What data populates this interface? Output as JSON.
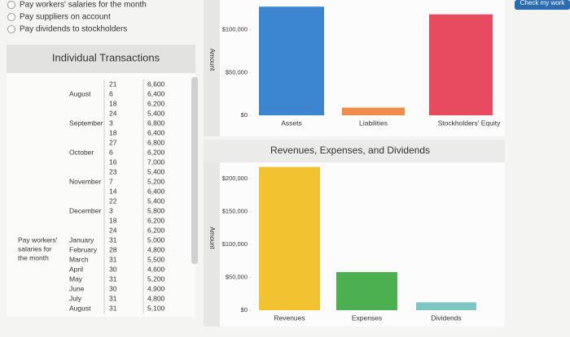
{
  "options": [
    "Pay workers' salaries for the month",
    "Pay suppliers on account",
    "Pay dividends to stockholders"
  ],
  "button": "Check my work",
  "transactions": {
    "title": "Individual Transactions",
    "side_label": [
      "Pay workers'",
      "salaries for",
      "the month"
    ],
    "rows": [
      {
        "day": "21",
        "amount": "6,600"
      },
      {
        "month": "August",
        "day": "6",
        "amount": "6,400"
      },
      {
        "day": "18",
        "amount": "6,200"
      },
      {
        "day": "24",
        "amount": "5,400"
      },
      {
        "month": "September",
        "day": "3",
        "amount": "6,800"
      },
      {
        "day": "18",
        "amount": "6,400"
      },
      {
        "day": "27",
        "amount": "6,800"
      },
      {
        "month": "October",
        "day": "6",
        "amount": "6,200"
      },
      {
        "day": "16",
        "amount": "7,000"
      },
      {
        "day": "23",
        "amount": "5,400"
      },
      {
        "month": "November",
        "day": "7",
        "amount": "5,200"
      },
      {
        "day": "14",
        "amount": "6,400"
      },
      {
        "day": "22",
        "amount": "5,400"
      },
      {
        "month": "December",
        "day": "3",
        "amount": "5,800"
      },
      {
        "day": "18",
        "amount": "6,200"
      },
      {
        "day": "24",
        "amount": "6,200"
      },
      {
        "month": "January",
        "day": "31",
        "amount": "5,000"
      },
      {
        "month": "February",
        "day": "28",
        "amount": "4,800"
      },
      {
        "month": "March",
        "day": "31",
        "amount": "5,500"
      },
      {
        "month": "April",
        "day": "30",
        "amount": "4,600"
      },
      {
        "month": "May",
        "day": "31",
        "amount": "5,200"
      },
      {
        "month": "June",
        "day": "30",
        "amount": "4,900"
      },
      {
        "month": "July",
        "day": "31",
        "amount": "4,800"
      },
      {
        "month": "August",
        "day": "31",
        "amount": "5,100"
      }
    ]
  },
  "chart_data": [
    {
      "type": "bar",
      "y_label": "Amount",
      "categories": [
        "Assets",
        "Liabilities",
        "Stockholders' Equity"
      ],
      "values": [
        127000,
        9000,
        118000
      ],
      "colors": [
        "#3b86cf",
        "#ef8b4b",
        "#e84a5f"
      ],
      "ylim": [
        0,
        130000
      ],
      "yticks": [
        {
          "value": 0,
          "label": "$0"
        },
        {
          "value": 50000,
          "label": "$50,000"
        },
        {
          "value": 100000,
          "label": "$100,000"
        }
      ]
    },
    {
      "type": "bar",
      "title": "Revenues, Expenses, and Dividends",
      "y_label": "Amount",
      "categories": [
        "Revenues",
        "Expenses",
        "Dividends"
      ],
      "values": [
        218000,
        58000,
        12000
      ],
      "colors": [
        "#f2c230",
        "#4caf50",
        "#7cc6c4"
      ],
      "ylim": [
        0,
        220000
      ],
      "yticks": [
        {
          "value": 0,
          "label": "$0"
        },
        {
          "value": 50000,
          "label": "$50,000"
        },
        {
          "value": 100000,
          "label": "$100,000"
        },
        {
          "value": 150000,
          "label": "$150,000"
        },
        {
          "value": 200000,
          "label": "$200,000"
        }
      ]
    }
  ]
}
